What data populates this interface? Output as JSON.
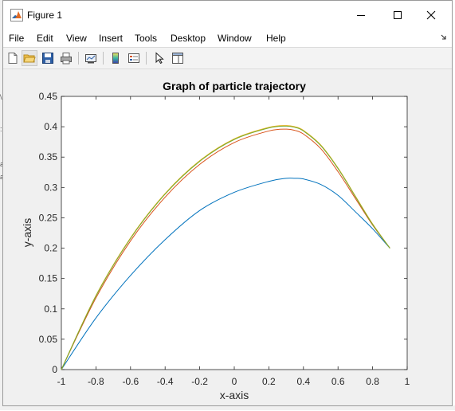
{
  "window": {
    "title": "Figure 1",
    "app_icon": "matlab-figure-icon",
    "controls": [
      "minimize-icon",
      "maximize-icon",
      "close-icon"
    ]
  },
  "menubar": {
    "items": [
      "File",
      "Edit",
      "View",
      "Insert",
      "Tools",
      "Desktop",
      "Window",
      "Help"
    ]
  },
  "toolbar": {
    "buttons": [
      "new-figure-icon",
      "open-file-icon",
      "save-icon",
      "print-icon",
      "link-plot-icon",
      "insert-colorbar-icon",
      "insert-legend-icon",
      "edit-plot-icon",
      "property-inspector-icon"
    ]
  },
  "colors": {
    "series_1": "#0072bd",
    "series_2": "#d95319",
    "series_3": "#edb120",
    "series_4": "#77ac30"
  },
  "chart_data": {
    "type": "line",
    "title": "Graph of particle trajectory",
    "xlabel": "x-axis",
    "ylabel": "y-axis",
    "xlim": [
      -1,
      1
    ],
    "ylim": [
      0,
      0.45
    ],
    "xticks": [
      "-1",
      "-0.8",
      "-0.6",
      "-0.4",
      "-0.2",
      "0",
      "0.2",
      "0.4",
      "0.6",
      "0.8",
      "1"
    ],
    "yticks": [
      "0",
      "0.05",
      "0.1",
      "0.15",
      "0.2",
      "0.25",
      "0.3",
      "0.35",
      "0.4",
      "0.45"
    ],
    "grid": false,
    "series": [
      {
        "x": [
          -1,
          -0.8,
          -0.6,
          -0.4,
          -0.2,
          0,
          0.2,
          0.3,
          0.35,
          0.4,
          0.5,
          0.6,
          0.7,
          0.8,
          0.9
        ],
        "y": [
          0,
          0.085,
          0.155,
          0.214,
          0.262,
          0.292,
          0.31,
          0.315,
          0.315,
          0.314,
          0.305,
          0.287,
          0.26,
          0.232,
          0.2
        ]
      },
      {
        "x": [
          -1,
          -0.8,
          -0.6,
          -0.4,
          -0.2,
          0,
          0.2,
          0.3,
          0.35,
          0.4,
          0.5,
          0.6,
          0.7,
          0.8,
          0.9
        ],
        "y": [
          0,
          0.118,
          0.212,
          0.284,
          0.338,
          0.374,
          0.393,
          0.396,
          0.394,
          0.388,
          0.364,
          0.326,
          0.282,
          0.238,
          0.2
        ]
      },
      {
        "x": [
          -1,
          -0.8,
          -0.6,
          -0.4,
          -0.2,
          0,
          0.2,
          0.3,
          0.35,
          0.4,
          0.5,
          0.6,
          0.7,
          0.8,
          0.9
        ],
        "y": [
          0,
          0.122,
          0.217,
          0.29,
          0.344,
          0.38,
          0.399,
          0.402,
          0.4,
          0.394,
          0.37,
          0.332,
          0.286,
          0.24,
          0.2
        ]
      },
      {
        "x": [
          -1,
          -0.8,
          -0.6,
          -0.4,
          -0.2,
          0,
          0.2,
          0.3,
          0.35,
          0.4,
          0.5,
          0.6,
          0.7,
          0.8,
          0.9
        ],
        "y": [
          0,
          0.121,
          0.216,
          0.289,
          0.343,
          0.379,
          0.398,
          0.401,
          0.399,
          0.393,
          0.369,
          0.331,
          0.285,
          0.239,
          0.2
        ]
      }
    ]
  }
}
